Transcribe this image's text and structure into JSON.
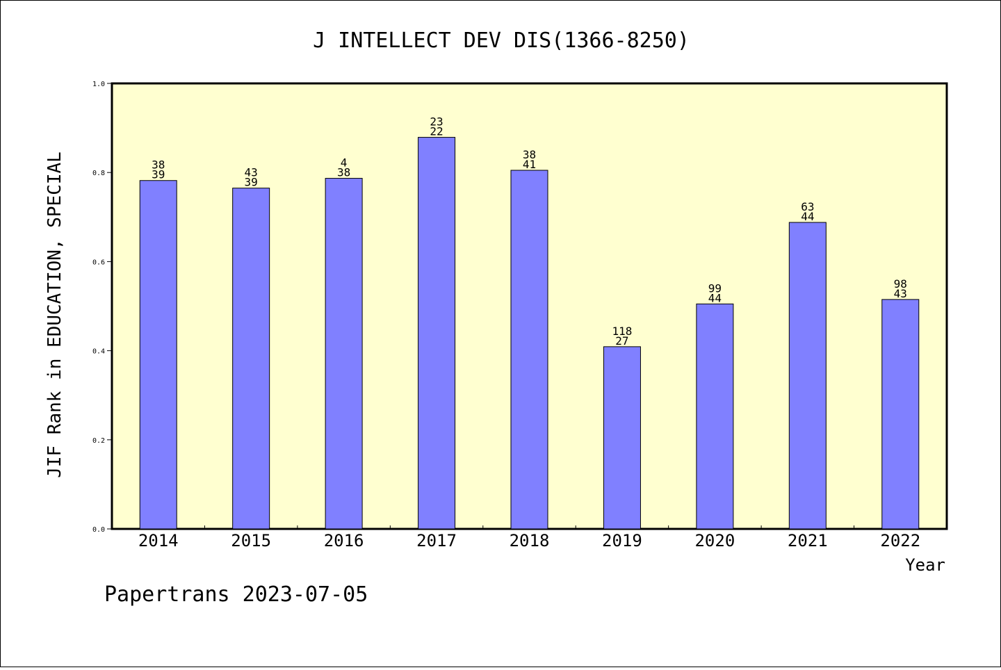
{
  "chart_data": {
    "type": "bar",
    "title": "J INTELLECT DEV DIS(1366-8250)",
    "xlabel": "Year",
    "ylabel": "JIF Rank in EDUCATION, SPECIAL",
    "ylim": [
      0,
      1.0
    ],
    "yticks": [
      "0.0",
      "0.2",
      "0.4",
      "0.6",
      "0.8",
      "1.0"
    ],
    "categories": [
      "2014",
      "2015",
      "2016",
      "2017",
      "2018",
      "2019",
      "2020",
      "2021",
      "2022"
    ],
    "values": [
      0.782,
      0.765,
      0.787,
      0.879,
      0.805,
      0.409,
      0.505,
      0.688,
      0.515
    ],
    "labels_top": [
      "38",
      "43",
      "4",
      "23",
      "38",
      "118",
      "99",
      "63",
      "98"
    ],
    "labels_bottom": [
      "39",
      "39",
      "38",
      "22",
      "41",
      "27",
      "44",
      "44",
      "43"
    ],
    "grid": false,
    "colors": {
      "bar": "#8080ff",
      "plot_background": "#ffffd0"
    }
  },
  "footer": "Papertrans 2023-07-05"
}
